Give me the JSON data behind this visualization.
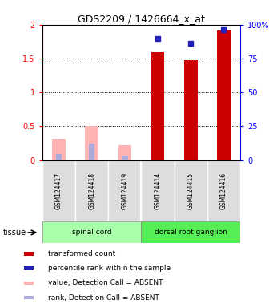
{
  "title": "GDS2209 / 1426664_x_at",
  "samples": [
    "GSM124417",
    "GSM124418",
    "GSM124419",
    "GSM124414",
    "GSM124415",
    "GSM124416"
  ],
  "red_values": [
    0.0,
    0.0,
    0.0,
    1.6,
    1.47,
    1.91
  ],
  "pink_values": [
    0.32,
    0.5,
    0.22,
    0.0,
    0.0,
    0.0
  ],
  "blue_rank_values_pct": [
    0.0,
    0.0,
    0.0,
    90.0,
    86.0,
    96.0
  ],
  "light_blue_values_pct": [
    4.5,
    12.0,
    3.5,
    0.0,
    0.0,
    0.0
  ],
  "ylim_left": [
    0,
    2
  ],
  "ylim_right": [
    0,
    100
  ],
  "yticks_left": [
    0,
    0.5,
    1.0,
    1.5,
    2.0
  ],
  "yticks_right": [
    0,
    25,
    50,
    75,
    100
  ],
  "ytick_labels_left": [
    "0",
    "0.5",
    "1",
    "1.5",
    "2"
  ],
  "ytick_labels_right": [
    "0",
    "25",
    "50",
    "75",
    "100%"
  ],
  "groups": [
    {
      "label": "spinal cord",
      "start": 0,
      "end": 3
    },
    {
      "label": "dorsal root ganglion",
      "start": 3,
      "end": 6
    }
  ],
  "tissue_label": "tissue",
  "bar_width": 0.4,
  "red_color": "#cc0000",
  "pink_color": "#ffb3b3",
  "blue_color": "#2222bb",
  "light_blue_color": "#aaaadd",
  "green_light": "#aaffaa",
  "green_dark": "#55ee55",
  "grey_box": "#dddddd",
  "legend_items": [
    {
      "color": "#cc0000",
      "label": "transformed count"
    },
    {
      "color": "#2222bb",
      "label": "percentile rank within the sample"
    },
    {
      "color": "#ffb3b3",
      "label": "value, Detection Call = ABSENT"
    },
    {
      "color": "#aaaadd",
      "label": "rank, Detection Call = ABSENT"
    }
  ],
  "grid_color": "black",
  "plot_bg": "white"
}
